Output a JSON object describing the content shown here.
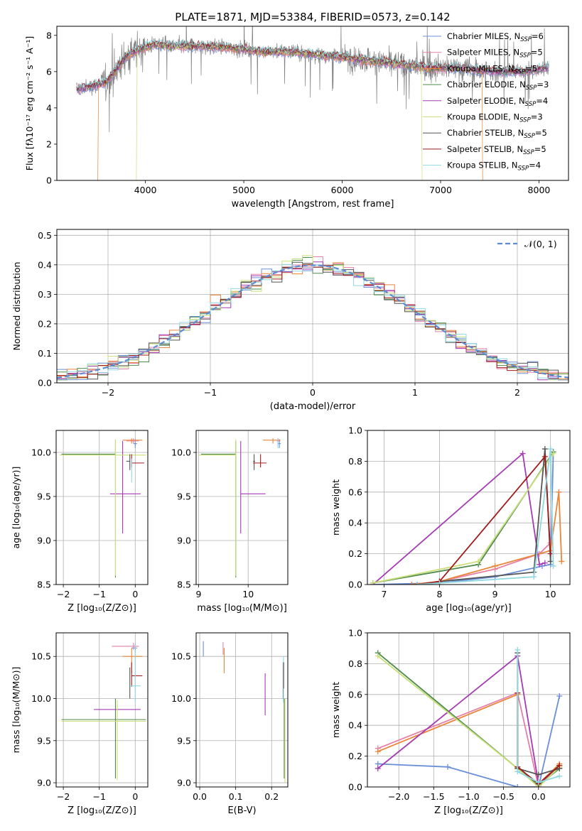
{
  "figure_title": "PLATE=1871, MJD=53384, FIBERID=0573, z=0.142",
  "chart_data": [
    {
      "id": "spectrum",
      "type": "line",
      "title": "PLATE=1871, MJD=53384, FIBERID=0573, z=0.142",
      "xlabel": "wavelength [Angstrom, rest frame]",
      "ylabel": "Flux [fλ10⁻¹⁷ erg cm⁻² s⁻¹ A⁻¹]",
      "xlim": [
        3100,
        8300
      ],
      "ylim": [
        0,
        8.5
      ],
      "xticks": [
        4000,
        5000,
        6000,
        7000,
        8000
      ],
      "yticks": [
        0,
        2,
        4,
        6,
        8
      ],
      "grid": false,
      "legend_position": "right",
      "legend": [
        {
          "label": "Chabrier MILES, N",
          "sub": "SSP",
          "suffix": "=6",
          "color": "#6a8fd8"
        },
        {
          "label": "Salpeter MILES, N",
          "sub": "SSP",
          "suffix": "=5",
          "color": "#e67fa8"
        },
        {
          "label": "Kroupa MILES, N",
          "sub": "SSP",
          "suffix": "=5",
          "color": "#e8863a"
        },
        {
          "label": "Chabrier ELODIE, N",
          "sub": "SSP",
          "suffix": "=3",
          "color": "#4e8a4e"
        },
        {
          "label": "Salpeter ELODIE, N",
          "sub": "SSP",
          "suffix": "=4",
          "color": "#a43bb3"
        },
        {
          "label": "Kroupa ELODIE, N",
          "sub": "SSP",
          "suffix": "=3",
          "color": "#c9e07a"
        },
        {
          "label": "Chabrier STELIB, N",
          "sub": "SSP",
          "suffix": "=5",
          "color": "#555555"
        },
        {
          "label": "Salpeter STELIB, N",
          "sub": "SSP",
          "suffix": "=5",
          "color": "#a01c1c"
        },
        {
          "label": "Kroupa STELIB, N",
          "sub": "SSP",
          "suffix": "=4",
          "color": "#8fd8e0"
        }
      ],
      "data_color": "#808080",
      "continuum": [
        [
          3300,
          5.0
        ],
        [
          3450,
          5.2
        ],
        [
          3600,
          5.4
        ],
        [
          3800,
          6.8
        ],
        [
          3950,
          7.3
        ],
        [
          4100,
          7.5
        ],
        [
          4300,
          7.4
        ],
        [
          4600,
          7.4
        ],
        [
          4900,
          7.3
        ],
        [
          5200,
          7.1
        ],
        [
          5500,
          7.1
        ],
        [
          5800,
          6.9
        ],
        [
          6000,
          6.8
        ],
        [
          6300,
          6.6
        ],
        [
          6600,
          6.4
        ],
        [
          6900,
          6.2
        ],
        [
          7200,
          6.2
        ],
        [
          7500,
          6.0
        ],
        [
          7800,
          6.0
        ],
        [
          8000,
          6.1
        ],
        [
          8100,
          6.3
        ]
      ],
      "model_cuts": [
        {
          "model": 2,
          "start": 3520,
          "end": 7420
        },
        {
          "model": 5,
          "start": 3910,
          "end": 6810
        }
      ]
    },
    {
      "id": "residuals",
      "type": "line",
      "xlabel": "(data-model)/error",
      "ylabel": "Normed distribution",
      "xlim": [
        -2.5,
        2.5
      ],
      "ylim": [
        0,
        0.52
      ],
      "xticks": [
        -2,
        -1,
        0,
        1,
        2
      ],
      "yticks": [
        0.0,
        0.1,
        0.2,
        0.3,
        0.4,
        0.5
      ],
      "grid": true,
      "legend_position": "upper right",
      "legend": [
        {
          "label": "𝒩(0, 1)",
          "color": "#5b8bd1",
          "dashed": true
        }
      ],
      "bin_width": 0.1
    },
    {
      "id": "z-age",
      "type": "scatter",
      "xlabel": "Z [log₁₀(Z/Z⊙)]",
      "ylabel": "age  [log₁₀(age/yr)]",
      "xlim": [
        -2.2,
        0.35
      ],
      "ylim": [
        8.5,
        10.25
      ],
      "xticks": [
        -2,
        -1,
        0
      ],
      "yticks": [
        8.5,
        9.0,
        9.5,
        10.0
      ],
      "grid": true,
      "points": [
        {
          "x": 0.0,
          "xerr": [
            0.05,
            0.05
          ],
          "y": 10.1,
          "yerr": [
            0.05,
            0.05
          ],
          "c": 0
        },
        {
          "x": -0.05,
          "xerr": [
            0.2,
            0.15
          ],
          "y": 10.13,
          "yerr": [
            0.03,
            0.03
          ],
          "c": 1
        },
        {
          "x": -0.1,
          "xerr": [
            0.25,
            0.3
          ],
          "y": 10.14,
          "yerr": [
            0.04,
            0.02
          ],
          "c": 2
        },
        {
          "x": -0.55,
          "xerr": [
            1.5,
            0.0
          ],
          "y": 9.98,
          "yerr": [
            1.4,
            0.15
          ],
          "c": 3
        },
        {
          "x": -0.35,
          "xerr": [
            0.35,
            0.5
          ],
          "y": 9.53,
          "yerr": [
            0.45,
            0.6
          ],
          "c": 4
        },
        {
          "x": -0.55,
          "xerr": [
            1.55,
            0.85
          ],
          "y": 9.97,
          "yerr": [
            1.37,
            0.18
          ],
          "c": 5
        },
        {
          "x": -0.15,
          "xerr": [
            0.1,
            0.0
          ],
          "y": 9.9,
          "yerr": [
            0.1,
            0.08
          ],
          "c": 6
        },
        {
          "x": -0.1,
          "xerr": [
            0.0,
            0.35
          ],
          "y": 9.88,
          "yerr": [
            0.05,
            0.1
          ],
          "c": 7
        },
        {
          "x": -0.1,
          "xerr": [
            0.0,
            0.0
          ],
          "y": 9.93,
          "yerr": [
            0.27,
            0.0
          ],
          "c": 8
        }
      ]
    },
    {
      "id": "mass-age",
      "type": "scatter",
      "xlabel": "mass [log₁₀(M/M⊙)]",
      "ylabel": "",
      "xlim": [
        8.95,
        10.8
      ],
      "ylim": [
        8.5,
        10.25
      ],
      "xticks": [
        9,
        10
      ],
      "yticks": [
        8.5,
        9.0,
        9.5,
        10.0
      ],
      "grid": true,
      "points": [
        {
          "x": 10.63,
          "xerr": [
            0.03,
            0.03
          ],
          "y": 10.1,
          "yerr": [
            0.05,
            0.05
          ],
          "c": 0
        },
        {
          "x": 10.6,
          "xerr": [
            0.02,
            0.05
          ],
          "y": 10.13,
          "yerr": [
            0.03,
            0.03
          ],
          "c": 1
        },
        {
          "x": 10.5,
          "xerr": [
            0.2,
            0.15
          ],
          "y": 10.14,
          "yerr": [
            0.04,
            0.02
          ],
          "c": 2
        },
        {
          "x": 9.75,
          "xerr": [
            0.7,
            0.0
          ],
          "y": 9.98,
          "yerr": [
            1.4,
            0.15
          ],
          "c": 3
        },
        {
          "x": 9.85,
          "xerr": [
            0.0,
            0.5
          ],
          "y": 9.53,
          "yerr": [
            0.45,
            0.6
          ],
          "c": 4
        },
        {
          "x": 9.75,
          "xerr": [
            0.75,
            0.0
          ],
          "y": 9.97,
          "yerr": [
            1.37,
            0.18
          ],
          "c": 5
        },
        {
          "x": 10.12,
          "xerr": [
            0.02,
            0.02
          ],
          "y": 9.9,
          "yerr": [
            0.1,
            0.08
          ],
          "c": 6
        },
        {
          "x": 10.25,
          "xerr": [
            0.15,
            0.12
          ],
          "y": 9.88,
          "yerr": [
            0.05,
            0.1
          ],
          "c": 7
        },
        {
          "x": 10.6,
          "xerr": [
            0.0,
            0.0
          ],
          "y": 10.1,
          "yerr": [
            0.05,
            0.05
          ],
          "c": 8
        }
      ]
    },
    {
      "id": "age-weight",
      "type": "line",
      "xlabel": "age  [log₁₀(age/yr)]",
      "ylabel": "mass weight",
      "xlim": [
        6.7,
        10.35
      ],
      "ylim": [
        0.0,
        1.0
      ],
      "xticks": [
        7,
        8,
        9,
        10
      ],
      "yticks": [
        0.0,
        0.2,
        0.4,
        0.6,
        0.8,
        1.0
      ],
      "grid": true,
      "series": [
        {
          "c": 0,
          "x": [
            6.8,
            8.0,
            9.0,
            9.85,
            10.0,
            10.05
          ],
          "y": [
            0.0,
            0.01,
            0.05,
            0.12,
            0.13,
            0.86
          ]
        },
        {
          "c": 1,
          "x": [
            7.5,
            8.0,
            9.0,
            9.8,
            10.0
          ],
          "y": [
            0.0,
            0.02,
            0.1,
            0.2,
            0.27
          ]
        },
        {
          "c": 2,
          "x": [
            7.5,
            8.0,
            9.0,
            10.0,
            10.15,
            10.2
          ],
          "y": [
            0.0,
            0.02,
            0.12,
            0.22,
            0.6,
            0.15
          ]
        },
        {
          "c": 3,
          "x": [
            6.8,
            8.7,
            10.05
          ],
          "y": [
            0.01,
            0.13,
            0.86
          ]
        },
        {
          "c": 4,
          "x": [
            6.8,
            9.5,
            9.8,
            9.9
          ],
          "y": [
            0.0,
            0.85,
            0.13,
            0.14
          ]
        },
        {
          "c": 5,
          "x": [
            6.8,
            8.7,
            10.05
          ],
          "y": [
            0.01,
            0.15,
            0.85
          ]
        },
        {
          "c": 6,
          "x": [
            7.6,
            8.0,
            9.7,
            9.9,
            10.0
          ],
          "y": [
            0.0,
            0.02,
            0.08,
            0.88,
            0.15
          ]
        },
        {
          "c": 7,
          "x": [
            7.6,
            8.0,
            9.9,
            10.0
          ],
          "y": [
            0.0,
            0.02,
            0.83,
            0.2
          ]
        },
        {
          "c": 8,
          "x": [
            7.6,
            8.0,
            9.7,
            10.0,
            10.05
          ],
          "y": [
            0.0,
            0.01,
            0.05,
            0.88,
            0.12
          ]
        }
      ]
    },
    {
      "id": "z-mass",
      "type": "scatter",
      "xlabel": "Z [log₁₀(Z/Z⊙)]",
      "ylabel": "mass [log₁₀(M/M⊙)]",
      "xlim": [
        -2.2,
        0.35
      ],
      "ylim": [
        8.95,
        10.78
      ],
      "xticks": [
        -2,
        -1,
        0
      ],
      "yticks": [
        9.0,
        9.5,
        10.0,
        10.5
      ],
      "grid": true,
      "points": [
        {
          "x": 0.0,
          "xerr": [
            0.1,
            0.05
          ],
          "y": 10.6,
          "yerr": [
            0.05,
            0.05
          ],
          "c": 0
        },
        {
          "x": -0.05,
          "xerr": [
            0.6,
            0.15
          ],
          "y": 10.62,
          "yerr": [
            0.04,
            0.04
          ],
          "c": 1
        },
        {
          "x": -0.1,
          "xerr": [
            0.25,
            0.3
          ],
          "y": 10.5,
          "yerr": [
            0.2,
            0.1
          ],
          "c": 2
        },
        {
          "x": -0.55,
          "xerr": [
            1.5,
            0.85
          ],
          "y": 9.75,
          "yerr": [
            0.7,
            0.25
          ],
          "c": 3
        },
        {
          "x": -0.35,
          "xerr": [
            0.8,
            0.5
          ],
          "y": 9.87,
          "yerr": [
            0.0,
            0.0
          ],
          "c": 4
        },
        {
          "x": -0.5,
          "xerr": [
            1.55,
            0.8
          ],
          "y": 9.73,
          "yerr": [
            0.7,
            0.25
          ],
          "c": 5
        },
        {
          "x": -0.15,
          "xerr": [
            0.0,
            0.0
          ],
          "y": 10.15,
          "yerr": [
            0.15,
            0.22
          ],
          "c": 6
        },
        {
          "x": -0.1,
          "xerr": [
            0.0,
            0.3
          ],
          "y": 10.27,
          "yerr": [
            0.13,
            0.16
          ],
          "c": 7
        },
        {
          "x": 0.0,
          "xerr": [
            0.15,
            0.15
          ],
          "y": 10.15,
          "yerr": [
            0.2,
            0.5
          ],
          "c": 8
        }
      ]
    },
    {
      "id": "ebv-mass",
      "type": "scatter",
      "xlabel": "E(B-V)",
      "ylabel": "",
      "xlim": [
        -0.01,
        0.245
      ],
      "ylim": [
        8.95,
        10.78
      ],
      "xticks": [
        0.0,
        0.1,
        0.2
      ],
      "yticks": [
        9.0,
        9.5,
        10.0,
        10.5
      ],
      "grid": true,
      "points": [
        {
          "x": 0.01,
          "y": 10.6,
          "yerr": [
            0.1,
            0.08
          ],
          "c": 0
        },
        {
          "x": 0.065,
          "y": 10.6,
          "yerr": [
            0.08,
            0.07
          ],
          "c": 1
        },
        {
          "x": 0.068,
          "y": 10.5,
          "yerr": [
            0.2,
            0.1
          ],
          "c": 2
        },
        {
          "x": 0.235,
          "y": 9.75,
          "yerr": [
            0.7,
            0.25
          ],
          "c": 3
        },
        {
          "x": 0.182,
          "y": 10.05,
          "yerr": [
            0.25,
            0.25
          ],
          "c": 4
        },
        {
          "x": 0.237,
          "y": 9.7,
          "yerr": [
            0.7,
            0.3
          ],
          "c": 5
        },
        {
          "x": 0.232,
          "y": 10.15,
          "yerr": [
            0.15,
            0.28
          ],
          "c": 6
        },
        {
          "x": 0.234,
          "y": 10.27,
          "yerr": [
            0.15,
            0.16
          ],
          "c": 7
        },
        {
          "x": 0.233,
          "y": 10.15,
          "yerr": [
            0.2,
            0.35
          ],
          "c": 8
        }
      ]
    },
    {
      "id": "z-weight",
      "type": "line",
      "xlabel": "Z [log₁₀(Z/Z⊙)]",
      "ylabel": "mass weight",
      "xlim": [
        -2.45,
        0.45
      ],
      "ylim": [
        0.0,
        1.0
      ],
      "xticks": [
        -2.0,
        -1.5,
        -1.0,
        -0.5,
        0.0
      ],
      "yticks": [
        0.0,
        0.2,
        0.4,
        0.6,
        0.8,
        1.0
      ],
      "grid": true,
      "series": [
        {
          "c": 0,
          "x": [
            -2.3,
            -1.3,
            -0.3,
            0.0,
            0.3
          ],
          "y": [
            0.15,
            0.13,
            0.0,
            0.0,
            0.59
          ]
        },
        {
          "c": 1,
          "x": [
            -2.3,
            -0.3,
            0.0,
            0.3
          ],
          "y": [
            0.25,
            0.61,
            0.0,
            0.14
          ]
        },
        {
          "c": 2,
          "x": [
            -2.3,
            -0.3,
            -0.3,
            0.0,
            0.3
          ],
          "y": [
            0.23,
            0.6,
            0.12,
            0.02,
            0.15
          ]
        },
        {
          "c": 3,
          "x": [
            -2.3,
            -0.3,
            0.0,
            0.3
          ],
          "y": [
            0.87,
            0.12,
            0.01,
            0.12
          ]
        },
        {
          "c": 4,
          "x": [
            -2.3,
            -0.3,
            0.0,
            0.3
          ],
          "y": [
            0.12,
            0.85,
            0.02,
            0.13
          ]
        },
        {
          "c": 5,
          "x": [
            -2.3,
            -0.3,
            0.0,
            0.3
          ],
          "y": [
            0.85,
            0.12,
            0.0,
            0.13
          ]
        },
        {
          "c": 6,
          "x": [
            -0.3,
            -0.3,
            0.0,
            0.3
          ],
          "y": [
            0.87,
            0.12,
            0.08,
            0.12
          ]
        },
        {
          "c": 7,
          "x": [
            -0.3,
            -0.3,
            0.0,
            0.3
          ],
          "y": [
            0.61,
            0.13,
            0.02,
            0.14
          ]
        },
        {
          "c": 8,
          "x": [
            -0.3,
            -0.3,
            0.0,
            0.3
          ],
          "y": [
            0.89,
            0.1,
            0.03,
            0.07
          ]
        }
      ]
    }
  ]
}
